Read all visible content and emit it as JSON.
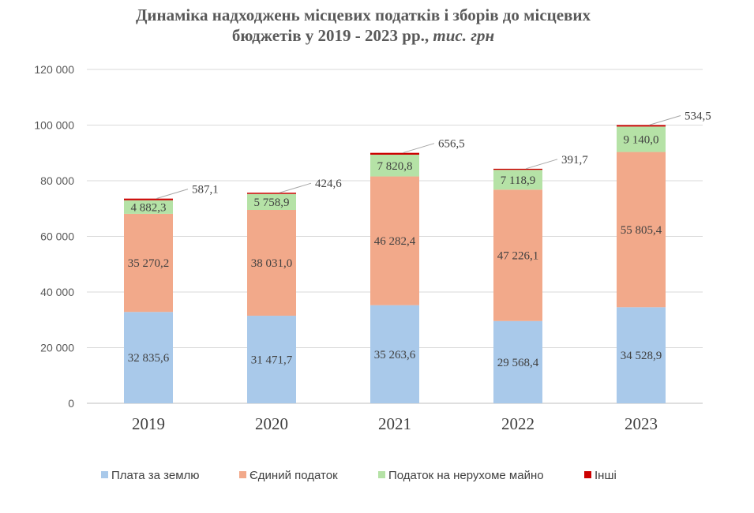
{
  "chart_data": {
    "type": "bar",
    "stacked": true,
    "title_line1": "Динаміка надходжень місцевих податків і зборів до місцевих",
    "title_line2": "бюджетів у 2019 - 2023 рр.,",
    "title_unit": "тис. грн",
    "xlabel": "",
    "ylabel": "",
    "categories": [
      "2019",
      "2020",
      "2021",
      "2022",
      "2023"
    ],
    "ylim": [
      0,
      120000
    ],
    "yticks": [
      0,
      20000,
      40000,
      60000,
      80000,
      100000,
      120000
    ],
    "ytick_labels": [
      "0",
      "20 000",
      "40 000",
      "60 000",
      "80 000",
      "100 000",
      "120 000"
    ],
    "grid": true,
    "legend_position": "bottom",
    "series": [
      {
        "name": "Плата за землю",
        "color": "#a9c9ea",
        "values": [
          32835.6,
          31471.7,
          35263.6,
          29568.4,
          34528.9
        ],
        "labels": [
          "32 835,6",
          "31 471,7",
          "35 263,6",
          "29 568,4",
          "34 528,9"
        ]
      },
      {
        "name": "Єдиний податок",
        "color": "#f2a98a",
        "values": [
          35270.2,
          38031.0,
          46282.4,
          47226.1,
          55805.4
        ],
        "labels": [
          "35 270,2",
          "38 031,0",
          "46 282,4",
          "47 226,1",
          "55 805,4"
        ]
      },
      {
        "name": "Податок на нерухоме майно",
        "color": "#b5e2a6",
        "values": [
          4882.3,
          5758.9,
          7820.8,
          7118.9,
          9140.0
        ],
        "labels": [
          "4 882,3",
          "5 758,9",
          "7 820,8",
          "7 118,9",
          "9 140,0"
        ]
      },
      {
        "name": "Інші",
        "color": "#cc0000",
        "values": [
          587.1,
          424.6,
          656.5,
          391.7,
          534.5
        ],
        "labels": [
          "587,1",
          "424,6",
          "656,5",
          "391,7",
          "534,5"
        ]
      }
    ]
  }
}
